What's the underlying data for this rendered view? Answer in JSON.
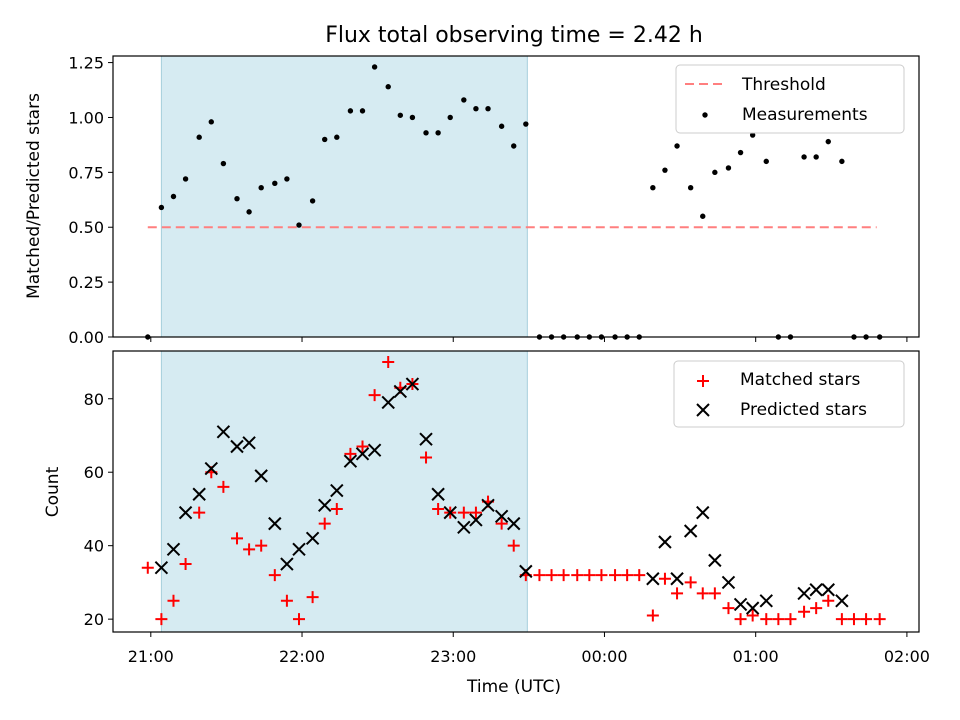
{
  "chart_data": {
    "title": "Flux total observing time = 2.42 h",
    "xlabel": "Time (UTC)",
    "x_unit": "hours UTC (21:00 = 21.0; after midnight continues as 24.x)",
    "xlim": [
      20.75,
      26.08
    ],
    "x_ticks": [
      {
        "value": 21,
        "label": "21:00"
      },
      {
        "value": 22,
        "label": "22:00"
      },
      {
        "value": 23,
        "label": "23:00"
      },
      {
        "value": 24,
        "label": "00:00"
      },
      {
        "value": 25,
        "label": "01:00"
      },
      {
        "value": 26,
        "label": "02:00"
      }
    ],
    "shaded_interval": [
      21.07,
      23.49
    ],
    "top": {
      "type": "scatter",
      "ylabel": "Matched/Predicted stars",
      "ylim": [
        0,
        1.28
      ],
      "y_ticks": [
        "0.00",
        "0.25",
        "0.50",
        "0.75",
        "1.00",
        "1.25"
      ],
      "legend": {
        "position": "top-right",
        "threshold_label": "Threshold",
        "measurements_label": "Measurements"
      },
      "threshold": {
        "value": 0.5,
        "x_range": [
          20.98,
          25.8
        ],
        "color": "#ff7f7f"
      },
      "measurements": [
        [
          20.98,
          0.0
        ],
        [
          21.07,
          0.59
        ],
        [
          21.15,
          0.64
        ],
        [
          21.23,
          0.72
        ],
        [
          21.32,
          0.91
        ],
        [
          21.4,
          0.98
        ],
        [
          21.48,
          0.79
        ],
        [
          21.57,
          0.63
        ],
        [
          21.65,
          0.57
        ],
        [
          21.73,
          0.68
        ],
        [
          21.82,
          0.7
        ],
        [
          21.9,
          0.72
        ],
        [
          21.98,
          0.51
        ],
        [
          22.07,
          0.62
        ],
        [
          22.15,
          0.9
        ],
        [
          22.23,
          0.91
        ],
        [
          22.32,
          1.03
        ],
        [
          22.4,
          1.03
        ],
        [
          22.48,
          1.23
        ],
        [
          22.57,
          1.14
        ],
        [
          22.65,
          1.01
        ],
        [
          22.73,
          1.0
        ],
        [
          22.82,
          0.93
        ],
        [
          22.9,
          0.93
        ],
        [
          22.98,
          1.0
        ],
        [
          23.07,
          1.08
        ],
        [
          23.15,
          1.04
        ],
        [
          23.23,
          1.04
        ],
        [
          23.32,
          0.96
        ],
        [
          23.4,
          0.87
        ],
        [
          23.48,
          0.97
        ],
        [
          23.57,
          0.0
        ],
        [
          23.65,
          0.0
        ],
        [
          23.73,
          0.0
        ],
        [
          23.82,
          0.0
        ],
        [
          23.9,
          0.0
        ],
        [
          23.98,
          0.0
        ],
        [
          24.07,
          0.0
        ],
        [
          24.15,
          0.0
        ],
        [
          24.23,
          0.0
        ],
        [
          24.32,
          0.68
        ],
        [
          24.4,
          0.76
        ],
        [
          24.48,
          0.87
        ],
        [
          24.57,
          0.68
        ],
        [
          24.65,
          0.55
        ],
        [
          24.73,
          0.75
        ],
        [
          24.82,
          0.77
        ],
        [
          24.9,
          0.84
        ],
        [
          24.98,
          0.92
        ],
        [
          25.07,
          0.8
        ],
        [
          25.15,
          0.0
        ],
        [
          25.23,
          0.0
        ],
        [
          25.32,
          0.82
        ],
        [
          25.4,
          0.82
        ],
        [
          25.48,
          0.89
        ],
        [
          25.57,
          0.8
        ],
        [
          25.65,
          0.0
        ],
        [
          25.73,
          0.0
        ],
        [
          25.82,
          0.0
        ]
      ]
    },
    "bottom": {
      "type": "scatter",
      "ylabel": "Count",
      "ylim": [
        16.5,
        93
      ],
      "y_ticks": [
        "20",
        "40",
        "60",
        "80"
      ],
      "legend": {
        "position": "top-right",
        "matched_label": "Matched stars",
        "predicted_label": "Predicted stars"
      },
      "matched_color": "#ff0000",
      "predicted_color": "#000000",
      "matched": [
        [
          20.98,
          34
        ],
        [
          21.07,
          20
        ],
        [
          21.15,
          25
        ],
        [
          21.23,
          35
        ],
        [
          21.32,
          49
        ],
        [
          21.4,
          60
        ],
        [
          21.48,
          56
        ],
        [
          21.57,
          42
        ],
        [
          21.65,
          39
        ],
        [
          21.73,
          40
        ],
        [
          21.82,
          32
        ],
        [
          21.9,
          25
        ],
        [
          21.98,
          20
        ],
        [
          22.07,
          26
        ],
        [
          22.15,
          46
        ],
        [
          22.23,
          50
        ],
        [
          22.32,
          65
        ],
        [
          22.4,
          67
        ],
        [
          22.48,
          81
        ],
        [
          22.57,
          90
        ],
        [
          22.65,
          83
        ],
        [
          22.73,
          84
        ],
        [
          22.82,
          64
        ],
        [
          22.9,
          50
        ],
        [
          22.98,
          49
        ],
        [
          23.07,
          49
        ],
        [
          23.15,
          49
        ],
        [
          23.23,
          52
        ],
        [
          23.32,
          46
        ],
        [
          23.4,
          40
        ],
        [
          23.48,
          32
        ],
        [
          23.57,
          32
        ],
        [
          23.65,
          32
        ],
        [
          23.73,
          32
        ],
        [
          23.82,
          32
        ],
        [
          23.9,
          32
        ],
        [
          23.98,
          32
        ],
        [
          24.07,
          32
        ],
        [
          24.15,
          32
        ],
        [
          24.23,
          32
        ],
        [
          24.32,
          21
        ],
        [
          24.4,
          31
        ],
        [
          24.48,
          27
        ],
        [
          24.57,
          30
        ],
        [
          24.65,
          27
        ],
        [
          24.73,
          27
        ],
        [
          24.82,
          23
        ],
        [
          24.9,
          20
        ],
        [
          24.98,
          21
        ],
        [
          25.07,
          20
        ],
        [
          25.15,
          20
        ],
        [
          25.23,
          20
        ],
        [
          25.32,
          22
        ],
        [
          25.4,
          23
        ],
        [
          25.48,
          25
        ],
        [
          25.57,
          20
        ],
        [
          25.65,
          20
        ],
        [
          25.73,
          20
        ],
        [
          25.82,
          20
        ]
      ],
      "predicted": [
        [
          21.07,
          34
        ],
        [
          21.15,
          39
        ],
        [
          21.23,
          49
        ],
        [
          21.32,
          54
        ],
        [
          21.4,
          61
        ],
        [
          21.48,
          71
        ],
        [
          21.57,
          67
        ],
        [
          21.65,
          68
        ],
        [
          21.73,
          59
        ],
        [
          21.82,
          46
        ],
        [
          21.9,
          35
        ],
        [
          21.98,
          39
        ],
        [
          22.07,
          42
        ],
        [
          22.15,
          51
        ],
        [
          22.23,
          55
        ],
        [
          22.32,
          63
        ],
        [
          22.4,
          65
        ],
        [
          22.48,
          66
        ],
        [
          22.57,
          79
        ],
        [
          22.65,
          82
        ],
        [
          22.73,
          84
        ],
        [
          22.82,
          69
        ],
        [
          22.9,
          54
        ],
        [
          22.98,
          49
        ],
        [
          23.07,
          45
        ],
        [
          23.15,
          47
        ],
        [
          23.23,
          51
        ],
        [
          23.32,
          48
        ],
        [
          23.4,
          46
        ],
        [
          23.48,
          33
        ],
        [
          24.32,
          31
        ],
        [
          24.4,
          41
        ],
        [
          24.48,
          31
        ],
        [
          24.57,
          44
        ],
        [
          24.65,
          49
        ],
        [
          24.73,
          36
        ],
        [
          24.82,
          30
        ],
        [
          24.9,
          24
        ],
        [
          24.98,
          23
        ],
        [
          25.07,
          25
        ],
        [
          25.32,
          27
        ],
        [
          25.4,
          28
        ],
        [
          25.48,
          28
        ],
        [
          25.57,
          25
        ]
      ]
    }
  }
}
